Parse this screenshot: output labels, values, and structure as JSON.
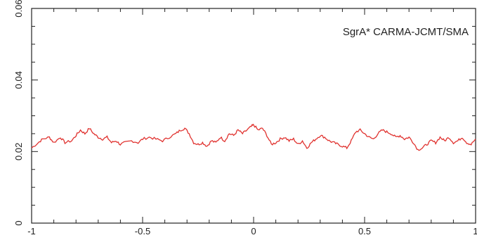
{
  "chart_data": {
    "type": "line",
    "title": "",
    "xlabel": "",
    "ylabel": "",
    "annotation": "SgrA* CARMA-JCMT/SMA",
    "xlim": [
      -1,
      1
    ],
    "ylim": [
      0,
      0.06
    ],
    "grid": false,
    "x_major_ticks": [
      -1,
      -0.5,
      0,
      0.5,
      1
    ],
    "x_tick_labels": [
      "-1",
      "-0.5",
      "0",
      "0.5",
      "1"
    ],
    "y_major_ticks": [
      0,
      0.02,
      0.04,
      0.06
    ],
    "y_tick_labels": [
      "0",
      "0.02",
      "0.04",
      "0.06"
    ],
    "series": [
      {
        "color": "#e0322f",
        "x": [
          -1.0,
          -0.97,
          -0.95,
          -0.92,
          -0.9,
          -0.87,
          -0.85,
          -0.82,
          -0.8,
          -0.78,
          -0.76,
          -0.74,
          -0.72,
          -0.7,
          -0.68,
          -0.66,
          -0.64,
          -0.62,
          -0.6,
          -0.58,
          -0.55,
          -0.52,
          -0.5,
          -0.47,
          -0.44,
          -0.41,
          -0.38,
          -0.35,
          -0.33,
          -0.31,
          -0.29,
          -0.27,
          -0.25,
          -0.23,
          -0.21,
          -0.19,
          -0.17,
          -0.15,
          -0.13,
          -0.11,
          -0.09,
          -0.07,
          -0.05,
          -0.03,
          -0.01,
          0.0,
          0.02,
          0.04,
          0.06,
          0.08,
          0.1,
          0.12,
          0.14,
          0.16,
          0.18,
          0.2,
          0.22,
          0.24,
          0.26,
          0.28,
          0.3,
          0.32,
          0.34,
          0.36,
          0.38,
          0.4,
          0.42,
          0.44,
          0.46,
          0.48,
          0.5,
          0.52,
          0.54,
          0.56,
          0.58,
          0.6,
          0.62,
          0.64,
          0.66,
          0.68,
          0.7,
          0.72,
          0.74,
          0.76,
          0.78,
          0.8,
          0.82,
          0.84,
          0.86,
          0.88,
          0.9,
          0.92,
          0.94,
          0.96,
          0.98,
          1.0
        ],
        "y": [
          0.021,
          0.0225,
          0.0235,
          0.024,
          0.0225,
          0.024,
          0.0225,
          0.023,
          0.0245,
          0.026,
          0.025,
          0.0265,
          0.025,
          0.024,
          0.0235,
          0.024,
          0.0225,
          0.023,
          0.022,
          0.0225,
          0.023,
          0.0225,
          0.0235,
          0.024,
          0.0235,
          0.023,
          0.024,
          0.025,
          0.026,
          0.0265,
          0.025,
          0.0225,
          0.022,
          0.0225,
          0.0215,
          0.023,
          0.0225,
          0.024,
          0.023,
          0.025,
          0.0245,
          0.026,
          0.025,
          0.026,
          0.027,
          0.0275,
          0.026,
          0.0265,
          0.0245,
          0.022,
          0.0225,
          0.0235,
          0.024,
          0.023,
          0.0235,
          0.022,
          0.023,
          0.021,
          0.0225,
          0.0235,
          0.0245,
          0.024,
          0.023,
          0.0225,
          0.022,
          0.0215,
          0.021,
          0.023,
          0.0255,
          0.026,
          0.025,
          0.024,
          0.0235,
          0.025,
          0.026,
          0.0255,
          0.025,
          0.024,
          0.0245,
          0.0235,
          0.024,
          0.0225,
          0.0205,
          0.021,
          0.022,
          0.023,
          0.0225,
          0.024,
          0.023,
          0.024,
          0.0225,
          0.023,
          0.024,
          0.0225,
          0.022,
          0.0235
        ]
      }
    ]
  }
}
